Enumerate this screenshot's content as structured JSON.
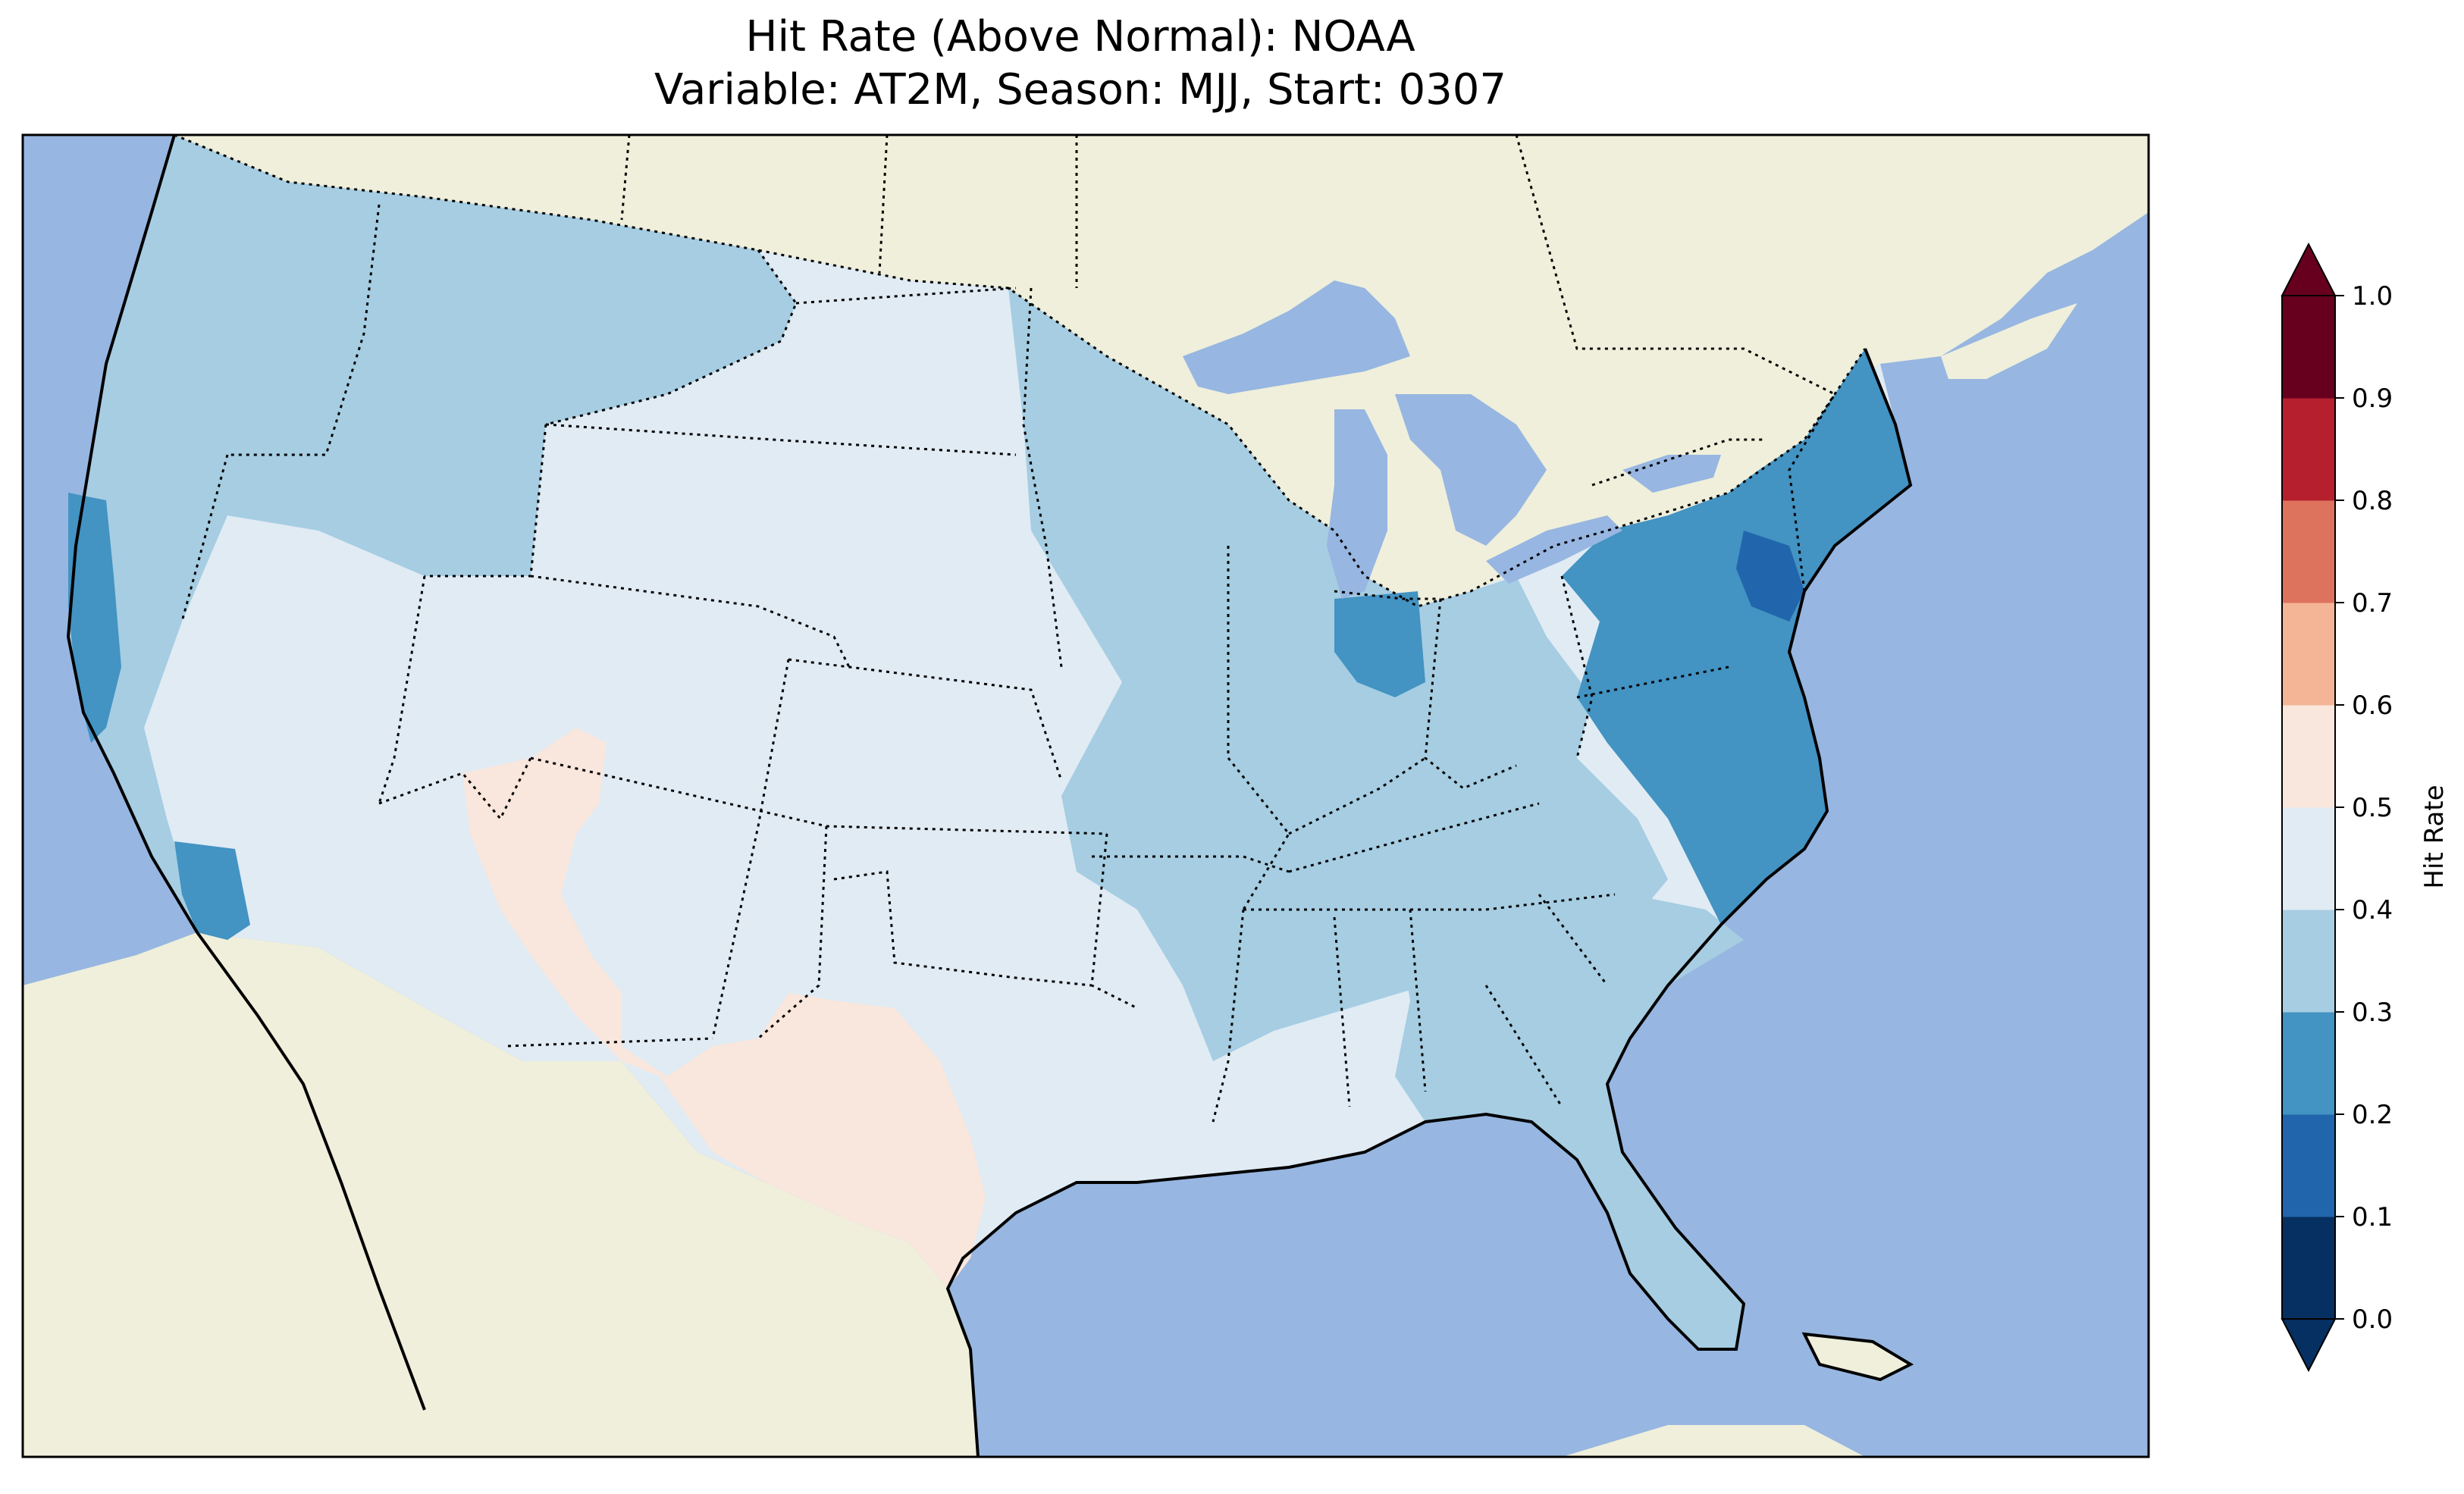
{
  "title": {
    "line1": "Hit Rate (Above Normal): NOAA",
    "line2": "Variable: AT2M, Season: MJJ, Start: 0307"
  },
  "colors": {
    "ocean": "#97b6e1",
    "land": "#efefdb",
    "lake": "#97b6e1"
  },
  "colorbar": {
    "label": "Hit Rate",
    "ticks": [
      "0.0",
      "0.1",
      "0.2",
      "0.3",
      "0.4",
      "0.5",
      "0.6",
      "0.7",
      "0.8",
      "0.9",
      "1.0"
    ],
    "bins": [
      {
        "range": [
          0.0,
          0.1
        ],
        "color": "#053061"
      },
      {
        "range": [
          0.1,
          0.2
        ],
        "color": "#2166ac"
      },
      {
        "range": [
          0.2,
          0.3
        ],
        "color": "#4393c3"
      },
      {
        "range": [
          0.3,
          0.4
        ],
        "color": "#a6cde2"
      },
      {
        "range": [
          0.4,
          0.5
        ],
        "color": "#e0ebf4"
      },
      {
        "range": [
          0.5,
          0.6
        ],
        "color": "#f9e6dc"
      },
      {
        "range": [
          0.6,
          0.7
        ],
        "color": "#f4b596"
      },
      {
        "range": [
          0.7,
          0.8
        ],
        "color": "#de735d"
      },
      {
        "range": [
          0.8,
          0.9
        ],
        "color": "#b51f2e"
      },
      {
        "range": [
          0.9,
          1.0
        ],
        "color": "#67001f"
      }
    ],
    "extend": "both"
  },
  "map_regions": [
    {
      "name": "pacific-northwest",
      "value": 0.35
    },
    {
      "name": "northern-rockies",
      "value": 0.35
    },
    {
      "name": "california-coast",
      "value": 0.25
    },
    {
      "name": "great-basin",
      "value": 0.45
    },
    {
      "name": "southern-california",
      "value": 0.25
    },
    {
      "name": "southwest-arizona-new-mexico",
      "value": 0.55
    },
    {
      "name": "texas",
      "value": 0.55
    },
    {
      "name": "great-plains",
      "value": 0.45
    },
    {
      "name": "upper-midwest",
      "value": 0.35
    },
    {
      "name": "ohio-valley",
      "value": 0.35
    },
    {
      "name": "indiana",
      "value": 0.25
    },
    {
      "name": "northeast",
      "value": 0.25
    },
    {
      "name": "mid-atlantic",
      "value": 0.15
    },
    {
      "name": "southeast",
      "value": 0.35
    },
    {
      "name": "gulf-coast",
      "value": 0.45
    },
    {
      "name": "florida",
      "value": 0.35
    }
  ]
}
